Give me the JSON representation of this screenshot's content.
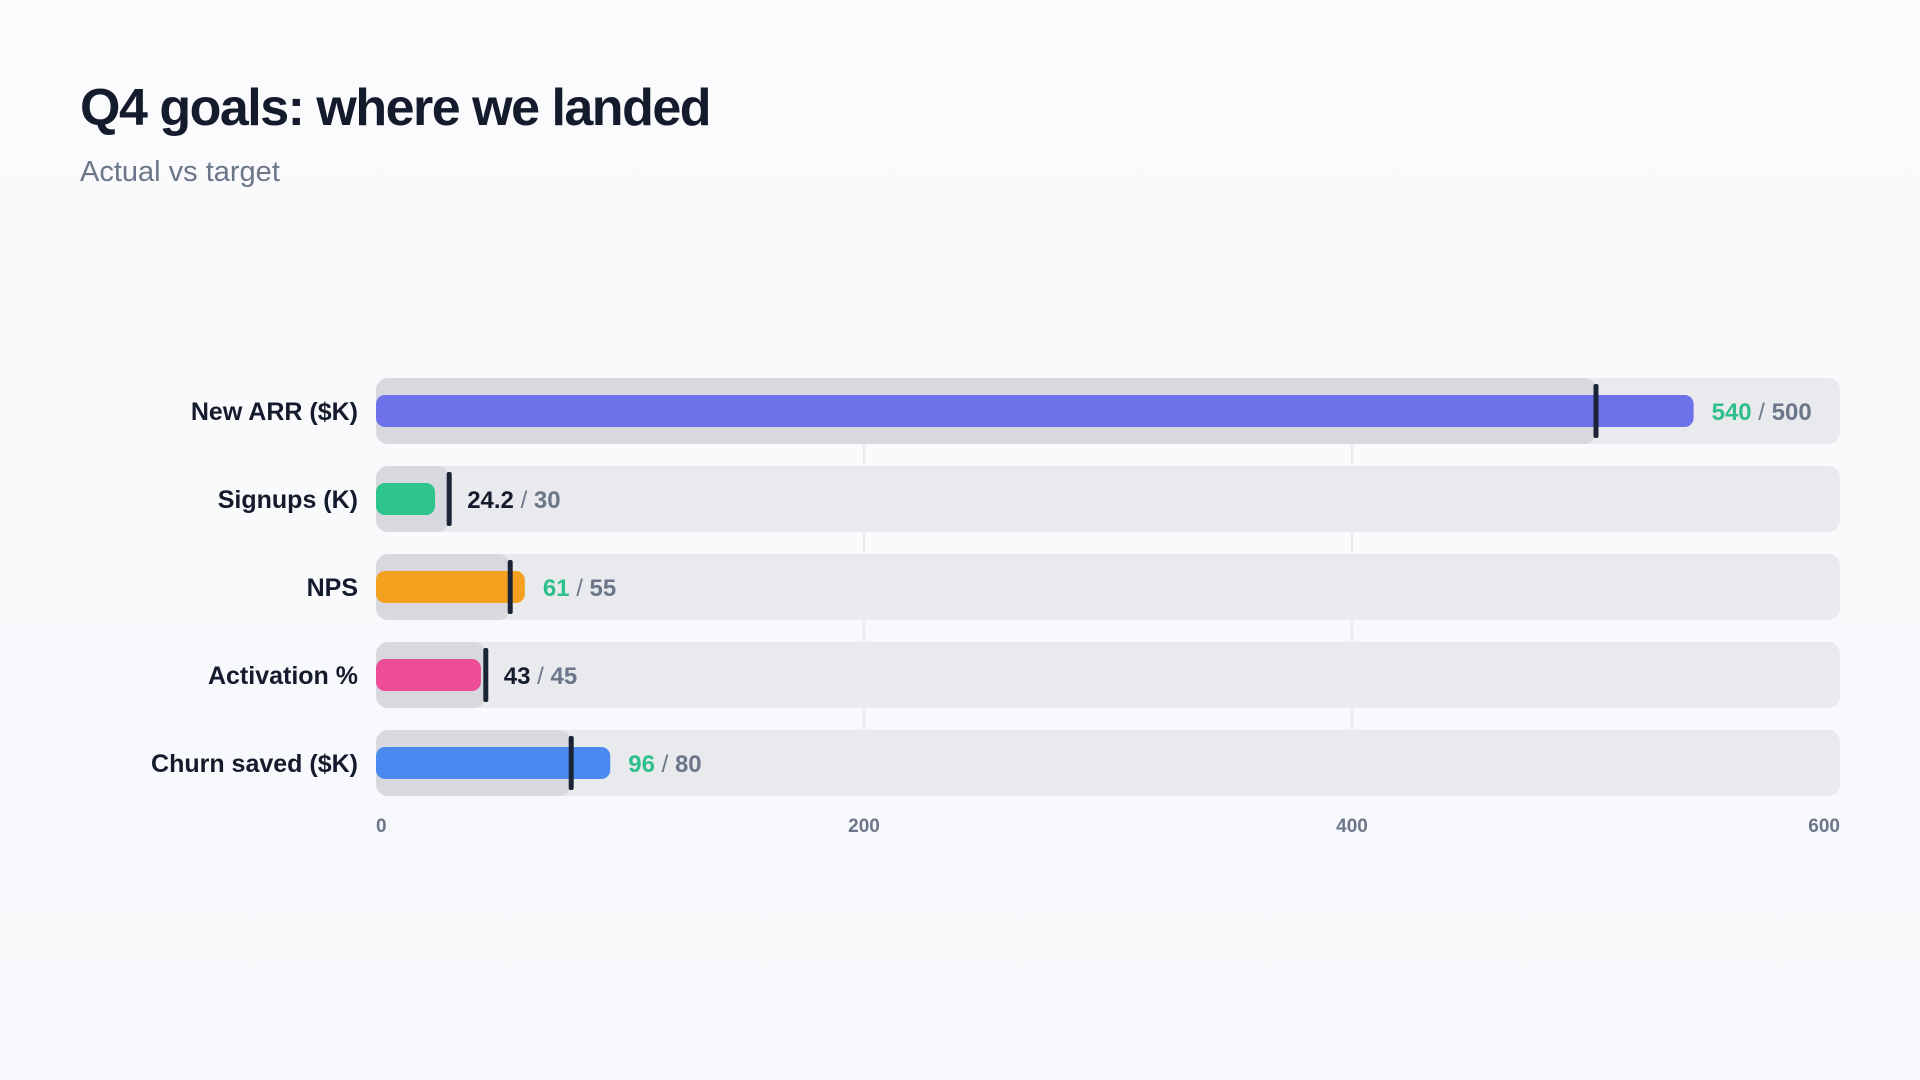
{
  "header": {
    "title": "Q4 goals: where we landed",
    "subtitle": "Actual vs target"
  },
  "chart_data": {
    "type": "bar",
    "orientation": "horizontal",
    "variant": "bullet",
    "title": "Q4 goals: where we landed",
    "subtitle": "Actual vs target",
    "xlim": [
      0,
      600
    ],
    "xticks": [
      0,
      200,
      400,
      600
    ],
    "grid": true,
    "colors": {
      "track": "#e9eaed",
      "target_fill": "#d8d9de",
      "target_marker": "#1b2336",
      "met_value": "#2fbf8a",
      "missed_value": "#141b2d",
      "target_text": "#6b7689"
    },
    "rows": [
      {
        "label": "New ARR ($K)",
        "actual": 540,
        "actual_label": "540",
        "target": 500,
        "target_label": "500",
        "color": "#6e72ea",
        "met": true
      },
      {
        "label": "Signups (K)",
        "actual": 24.2,
        "actual_label": "24.2",
        "target": 30,
        "target_label": "30",
        "color": "#2ec48d",
        "met": false
      },
      {
        "label": "NPS",
        "actual": 61,
        "actual_label": "61",
        "target": 55,
        "target_label": "55",
        "color": "#f3a11f",
        "met": true
      },
      {
        "label": "Activation %",
        "actual": 43,
        "actual_label": "43",
        "target": 45,
        "target_label": "45",
        "color": "#ec4d96",
        "met": false
      },
      {
        "label": "Churn saved ($K)",
        "actual": 96,
        "actual_label": "96",
        "target": 80,
        "target_label": "80",
        "color": "#4a8af0",
        "met": true
      }
    ]
  }
}
